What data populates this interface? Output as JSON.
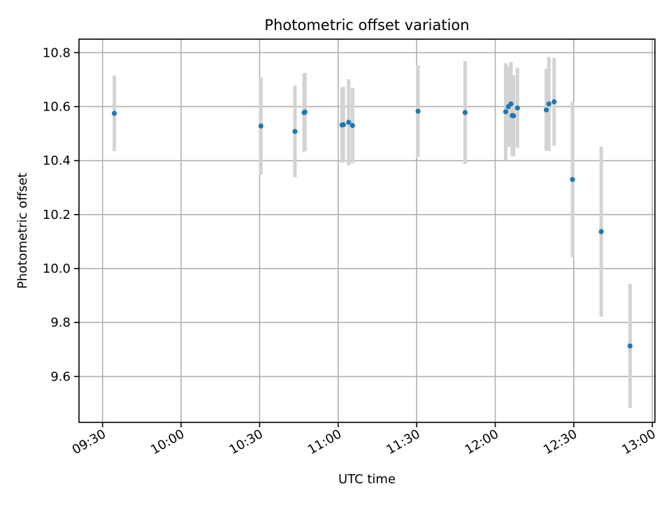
{
  "chart_data": {
    "type": "scatter",
    "title": "Photometric offset variation",
    "xlabel": "UTC time",
    "ylabel": "Photometric offset",
    "xlim": [
      "09:21",
      "13:01"
    ],
    "ylim": [
      9.43,
      10.85
    ],
    "x_tick_labels": [
      "09:30",
      "10:00",
      "10:30",
      "11:00",
      "11:30",
      "12:00",
      "12:30",
      "13:00"
    ],
    "y_tick_values": [
      9.6,
      9.8,
      10.0,
      10.2,
      10.4,
      10.6,
      10.8
    ],
    "y_tick_labels": [
      "9.6",
      "9.8",
      "10.0",
      "10.2",
      "10.4",
      "10.6",
      "10.8"
    ],
    "grid": true,
    "marker_color": "#1f77b4",
    "errorbar_color": "#d3d3d3",
    "points": [
      {
        "t": "09:34:30",
        "y": 10.575,
        "err": 0.14
      },
      {
        "t": "10:30:30",
        "y": 10.528,
        "err": 0.18
      },
      {
        "t": "10:43:30",
        "y": 10.508,
        "err": 0.17
      },
      {
        "t": "10:47:00",
        "y": 10.578,
        "err": 0.145
      },
      {
        "t": "10:47:20",
        "y": 10.58,
        "err": 0.145
      },
      {
        "t": "11:01:30",
        "y": 10.532,
        "err": 0.14
      },
      {
        "t": "11:02:00",
        "y": 10.533,
        "err": 0.14
      },
      {
        "t": "11:04:00",
        "y": 10.542,
        "err": 0.16
      },
      {
        "t": "11:05:30",
        "y": 10.53,
        "err": 0.14
      },
      {
        "t": "11:30:30",
        "y": 10.583,
        "err": 0.17
      },
      {
        "t": "11:48:30",
        "y": 10.578,
        "err": 0.19
      },
      {
        "t": "12:04:00",
        "y": 10.581,
        "err": 0.18
      },
      {
        "t": "12:05:00",
        "y": 10.6,
        "err": 0.15
      },
      {
        "t": "12:06:00",
        "y": 10.61,
        "err": 0.155
      },
      {
        "t": "12:06:30",
        "y": 10.567,
        "err": 0.15
      },
      {
        "t": "12:07:00",
        "y": 10.566,
        "err": 0.15
      },
      {
        "t": "12:08:30",
        "y": 10.595,
        "err": 0.148
      },
      {
        "t": "12:19:30",
        "y": 10.588,
        "err": 0.152
      },
      {
        "t": "12:20:30",
        "y": 10.61,
        "err": 0.174
      },
      {
        "t": "12:22:30",
        "y": 10.618,
        "err": 0.163
      },
      {
        "t": "12:29:30",
        "y": 10.33,
        "err": 0.288
      },
      {
        "t": "12:40:30",
        "y": 10.137,
        "err": 0.315
      },
      {
        "t": "12:51:30",
        "y": 9.713,
        "err": 0.23
      }
    ]
  }
}
